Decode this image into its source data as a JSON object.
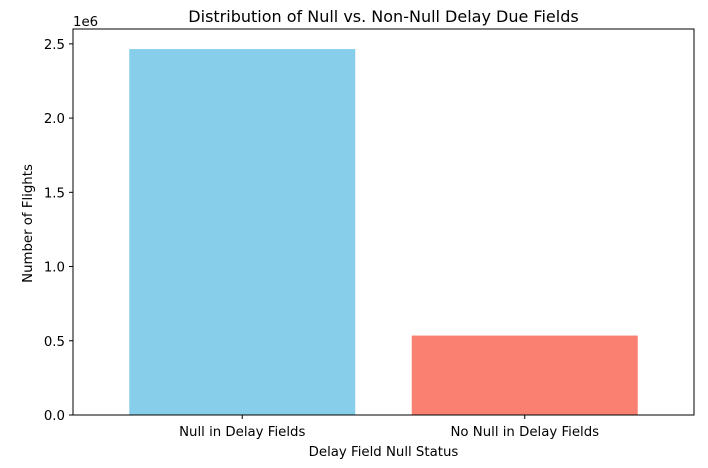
{
  "chart_data": {
    "type": "bar",
    "title": "Distribution of Null vs. Non-Null Delay Due Fields",
    "xlabel": "Delay Field Null Status",
    "ylabel": "Number of Flights",
    "y_offset_label": "1e6",
    "categories": [
      "Null in Delay Fields",
      "No Null in Delay Fields"
    ],
    "values": [
      2465000,
      535000
    ],
    "colors": [
      "#87CEEB",
      "#FA8072"
    ],
    "ylim": [
      0,
      2600000
    ],
    "yticks": [
      0,
      500000,
      1000000,
      1500000,
      2000000,
      2500000
    ],
    "ytick_labels": [
      "0.0",
      "0.5",
      "1.0",
      "1.5",
      "2.0",
      "2.5"
    ],
    "grid": false,
    "legend": "none"
  }
}
